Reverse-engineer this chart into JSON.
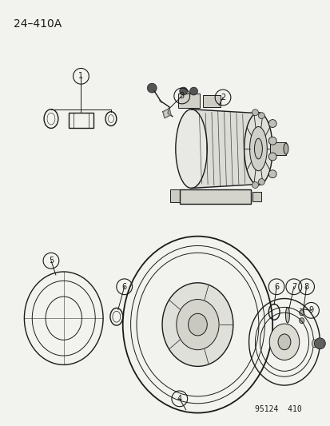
{
  "title": "24–410A",
  "footer": "95124  410",
  "bg_color": "#f2f2ee",
  "line_color": "#1a1a1a",
  "lw_thin": 0.7,
  "lw_med": 1.0,
  "lw_thick": 1.3
}
